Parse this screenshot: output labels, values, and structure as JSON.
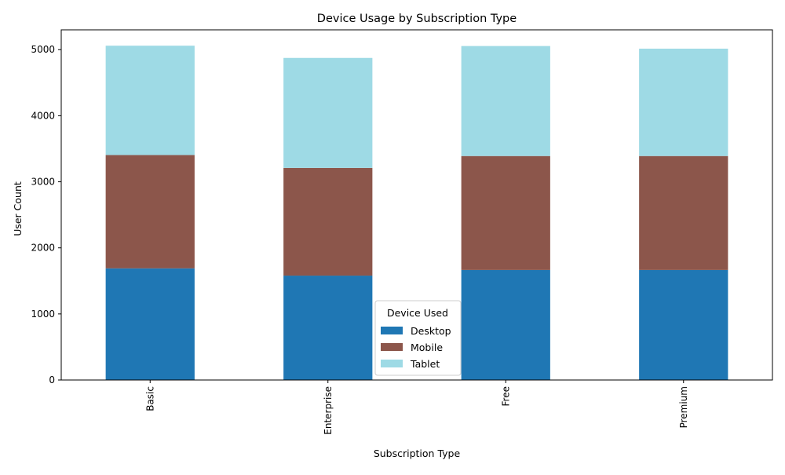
{
  "chart_data": {
    "type": "bar",
    "stacked": true,
    "title": "Device Usage by Subscription Type",
    "xlabel": "Subscription Type",
    "ylabel": "User Count",
    "categories": [
      "Basic",
      "Enterprise",
      "Free",
      "Premium"
    ],
    "series": [
      {
        "name": "Desktop",
        "color": "#1f77b4",
        "values": [
          1690,
          1580,
          1665,
          1665
        ]
      },
      {
        "name": "Mobile",
        "color": "#8c564b",
        "values": [
          1715,
          1630,
          1725,
          1725
        ]
      },
      {
        "name": "Tablet",
        "color": "#9edae5",
        "values": [
          1655,
          1665,
          1665,
          1625
        ]
      }
    ],
    "ylim": [
      0,
      5300
    ],
    "yticks": [
      0,
      1000,
      2000,
      3000,
      4000,
      5000
    ],
    "grid": false,
    "legend": {
      "title": "Device Used",
      "placement": "bottom-center"
    }
  }
}
